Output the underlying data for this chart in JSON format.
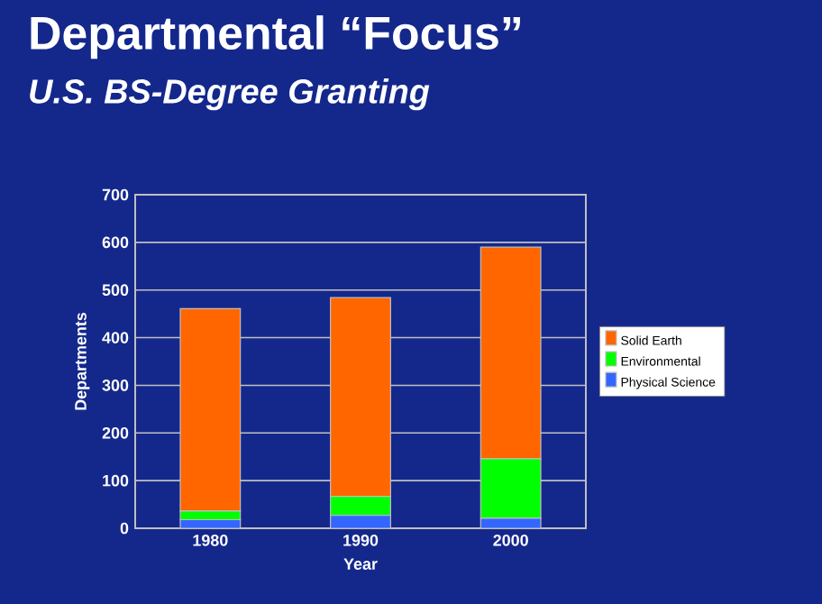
{
  "chart_data": {
    "type": "bar",
    "title": "Departmental “Focus”",
    "subtitle": "U.S. BS-Degree Granting",
    "xlabel": "Year",
    "ylabel": "Departments",
    "categories": [
      "1980",
      "1990",
      "2000"
    ],
    "stacked": true,
    "series": [
      {
        "name": "Physical Science",
        "color": "#3366ff",
        "values": [
          18,
          27,
          21
        ]
      },
      {
        "name": "Environmental",
        "color": "#00ff00",
        "values": [
          18,
          40,
          125
        ]
      },
      {
        "name": "Solid Earth",
        "color": "#ff6600",
        "values": [
          425,
          417,
          444
        ]
      }
    ],
    "ylim": [
      0,
      700
    ],
    "yticks": [
      0,
      100,
      200,
      300,
      400,
      500,
      600,
      700
    ],
    "grid": "y",
    "legend": "right"
  }
}
